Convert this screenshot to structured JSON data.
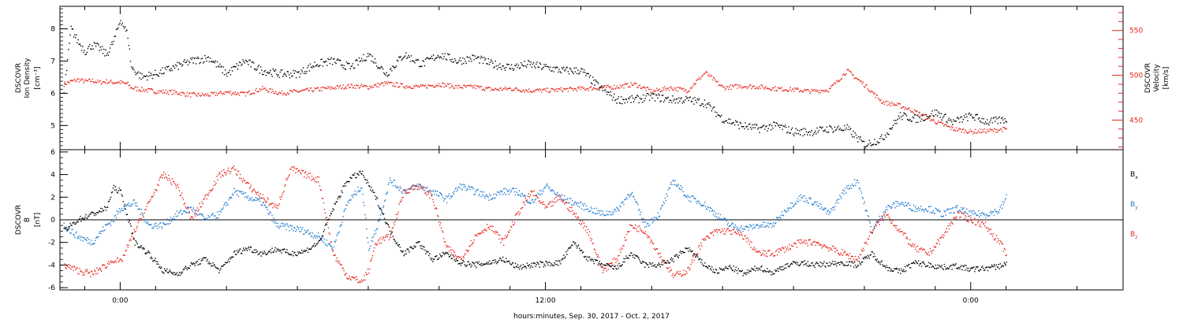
{
  "chart_data": [
    {
      "type": "line",
      "panel": "plasma",
      "ylabel_left": [
        "DSCOVR",
        "Ion Density",
        "[cm⁻³]"
      ],
      "ylabel_right": [
        "DSCOVR",
        "Velocity",
        "[km/s]"
      ],
      "ylim_left": [
        4.25,
        8.7
      ],
      "ylim_right": [
        417,
        577
      ],
      "yticks_left": [
        5,
        6,
        7,
        8
      ],
      "yticks_right": [
        450,
        500,
        550
      ],
      "series": [
        {
          "key": "density",
          "axis": "left",
          "color": "#000000",
          "x": [
            -1.6,
            -1.4,
            -1.2,
            -1.0,
            -0.8,
            -0.6,
            -0.4,
            -0.2,
            0.0,
            0.2,
            0.3,
            0.6,
            1.0,
            1.5,
            2.0,
            2.5,
            3.0,
            3.5,
            4.0,
            4.5,
            5.0,
            5.5,
            6.0,
            6.5,
            7.0,
            7.5,
            8.0,
            8.5,
            9.0,
            9.5,
            10.0,
            10.5,
            11.0,
            11.5,
            12.0,
            12.5,
            13.0,
            13.5,
            14.0,
            14.5,
            15.0,
            15.5,
            16.0,
            16.5,
            17.0,
            17.5,
            18.0,
            18.5,
            19.0,
            19.5,
            20.0,
            20.5,
            21.0,
            21.5,
            22.0,
            22.5,
            23.0,
            23.5,
            24.0,
            24.5,
            25.0
          ],
          "values": [
            6.0,
            8.0,
            7.6,
            7.3,
            7.5,
            7.4,
            7.2,
            7.6,
            8.3,
            7.8,
            6.8,
            6.5,
            6.6,
            6.8,
            7.0,
            7.1,
            6.6,
            7.0,
            6.7,
            6.6,
            6.6,
            6.9,
            7.0,
            6.8,
            7.2,
            6.6,
            7.2,
            6.9,
            7.2,
            7.0,
            7.1,
            6.9,
            6.8,
            6.9,
            6.8,
            6.7,
            6.7,
            6.2,
            5.8,
            5.8,
            5.9,
            5.8,
            5.8,
            5.7,
            5.2,
            5.0,
            4.9,
            5.0,
            4.8,
            4.8,
            4.9,
            4.9,
            4.4,
            4.6,
            5.3,
            5.2,
            5.4,
            5.1,
            5.3,
            5.1,
            5.2
          ]
        },
        {
          "key": "velocity",
          "axis": "right",
          "color": "#e8261c",
          "x": [
            -1.6,
            -1.4,
            -1.2,
            -1.0,
            -0.8,
            -0.6,
            -0.4,
            -0.2,
            0.0,
            0.2,
            0.3,
            0.6,
            1.0,
            1.5,
            2.0,
            2.5,
            3.0,
            3.5,
            4.0,
            4.5,
            5.0,
            5.5,
            6.0,
            6.5,
            7.0,
            7.5,
            8.0,
            8.5,
            9.0,
            9.5,
            10.0,
            10.5,
            11.0,
            11.5,
            12.0,
            12.5,
            13.0,
            13.5,
            14.0,
            14.5,
            15.0,
            15.5,
            16.0,
            16.5,
            17.0,
            17.5,
            18.0,
            18.5,
            19.0,
            19.5,
            20.0,
            20.5,
            21.0,
            21.5,
            22.0,
            22.5,
            23.0,
            23.5,
            24.0,
            24.5,
            25.0
          ],
          "values": [
            490,
            493,
            495,
            493,
            494,
            492,
            493,
            492,
            492,
            490,
            486,
            484,
            482,
            481,
            478,
            478,
            481,
            479,
            485,
            480,
            482,
            484,
            486,
            488,
            487,
            491,
            488,
            487,
            490,
            487,
            487,
            484,
            485,
            483,
            483,
            484,
            485,
            486,
            487,
            490,
            482,
            486,
            483,
            503,
            486,
            488,
            487,
            485,
            484,
            482,
            484,
            505,
            489,
            470,
            466,
            458,
            448,
            440,
            437,
            438,
            440
          ]
        }
      ]
    },
    {
      "type": "line",
      "panel": "magnetic-field",
      "ylabel_left": [
        "DSCOVR",
        "B",
        "[nT]"
      ],
      "ylim": [
        -6.2,
        6.2
      ],
      "yticks": [
        -6,
        -4,
        -2,
        0,
        2,
        4,
        6
      ],
      "zero_line": true,
      "legend_position": "right",
      "series": [
        {
          "key": "bx",
          "name": "B",
          "subscript": "x",
          "color": "#000000",
          "x": [
            -1.6,
            -1.2,
            -0.8,
            -0.4,
            -0.2,
            0.0,
            0.4,
            0.8,
            1.2,
            1.6,
            2.0,
            2.4,
            2.8,
            3.2,
            3.6,
            4.0,
            4.4,
            4.8,
            5.2,
            5.6,
            6.0,
            6.4,
            6.8,
            7.0,
            7.2,
            7.6,
            8.0,
            8.4,
            8.8,
            9.2,
            9.6,
            10.0,
            10.4,
            10.8,
            11.2,
            11.6,
            12.0,
            12.4,
            12.8,
            13.2,
            13.6,
            14.0,
            14.4,
            14.8,
            15.2,
            15.6,
            16.0,
            16.4,
            16.8,
            17.2,
            17.6,
            18.0,
            18.4,
            18.8,
            19.2,
            19.6,
            20.0,
            20.4,
            20.8,
            21.2,
            21.6,
            22.0,
            22.4,
            22.8,
            23.2,
            23.6,
            24.0,
            24.4,
            24.8,
            25.0
          ],
          "values": [
            -1.0,
            0.0,
            0.5,
            1.0,
            2.8,
            2.5,
            -2.0,
            -3.0,
            -4.5,
            -4.8,
            -4.0,
            -3.5,
            -4.5,
            -3.0,
            -2.5,
            -3.0,
            -2.6,
            -3.0,
            -2.8,
            -2.0,
            1.0,
            3.5,
            4.2,
            3.0,
            2.0,
            -1.0,
            -3.0,
            -2.0,
            -3.5,
            -3.0,
            -3.8,
            -4.0,
            -3.8,
            -3.5,
            -4.2,
            -4.0,
            -3.9,
            -3.8,
            -2.0,
            -3.5,
            -4.0,
            -4.3,
            -3.0,
            -4.0,
            -4.0,
            -3.5,
            -2.5,
            -3.8,
            -4.6,
            -4.2,
            -4.8,
            -4.2,
            -4.7,
            -4.0,
            -3.8,
            -4.0,
            -3.9,
            -3.8,
            -4.0,
            -3.0,
            -4.2,
            -4.6,
            -3.8,
            -4.0,
            -4.2,
            -4.1,
            -4.4,
            -4.3,
            -4.1,
            -3.9
          ]
        },
        {
          "key": "by",
          "name": "B",
          "subscript": "y",
          "color": "#1f7ad0",
          "x": [
            -1.6,
            -1.2,
            -0.8,
            -0.4,
            -0.2,
            0.0,
            0.4,
            0.8,
            1.2,
            1.6,
            2.0,
            2.4,
            2.8,
            3.2,
            3.6,
            4.0,
            4.4,
            4.8,
            5.2,
            5.6,
            6.0,
            6.4,
            6.8,
            7.0,
            7.2,
            7.6,
            8.0,
            8.4,
            8.8,
            9.2,
            9.6,
            10.0,
            10.4,
            10.8,
            11.2,
            11.6,
            12.0,
            12.4,
            12.8,
            13.2,
            13.6,
            14.0,
            14.4,
            14.8,
            15.2,
            15.6,
            16.0,
            16.4,
            16.8,
            17.2,
            17.6,
            18.0,
            18.4,
            18.8,
            19.2,
            19.6,
            20.0,
            20.4,
            20.8,
            21.2,
            21.6,
            22.0,
            22.4,
            22.8,
            23.2,
            23.6,
            24.0,
            24.4,
            24.8,
            25.0
          ],
          "values": [
            -0.5,
            -1.5,
            -2.0,
            -0.5,
            0.0,
            1.0,
            1.5,
            -0.5,
            -0.5,
            0.5,
            1.0,
            0.0,
            0.5,
            2.5,
            2.0,
            1.5,
            -0.5,
            -0.7,
            -1.0,
            -1.5,
            -2.5,
            1.5,
            3.0,
            -2.5,
            -1.0,
            3.5,
            2.5,
            3.0,
            2.5,
            1.8,
            3.0,
            2.5,
            2.0,
            2.5,
            2.5,
            1.5,
            3.0,
            2.0,
            1.5,
            1.0,
            0.5,
            0.8,
            2.5,
            -0.5,
            0.5,
            3.5,
            2.0,
            1.5,
            0.5,
            -0.5,
            -0.8,
            -0.5,
            -0.5,
            1.0,
            2.0,
            1.5,
            0.5,
            2.5,
            3.5,
            -1.0,
            1.0,
            1.5,
            1.0,
            1.0,
            0.5,
            1.0,
            0.5,
            0.5,
            0.8,
            2.0
          ]
        },
        {
          "key": "bz",
          "name": "B",
          "subscript": "z",
          "color": "#e8261c",
          "x": [
            -1.6,
            -1.2,
            -0.8,
            -0.4,
            -0.2,
            0.0,
            0.4,
            0.8,
            1.2,
            1.6,
            2.0,
            2.4,
            2.8,
            3.2,
            3.6,
            4.0,
            4.4,
            4.8,
            5.2,
            5.6,
            6.0,
            6.4,
            6.8,
            7.0,
            7.2,
            7.6,
            8.0,
            8.4,
            8.8,
            9.2,
            9.6,
            10.0,
            10.4,
            10.8,
            11.2,
            11.6,
            12.0,
            12.4,
            12.8,
            13.2,
            13.6,
            14.0,
            14.4,
            14.8,
            15.2,
            15.6,
            16.0,
            16.4,
            16.8,
            17.2,
            17.6,
            18.0,
            18.4,
            18.8,
            19.2,
            19.6,
            20.0,
            20.4,
            20.8,
            21.2,
            21.6,
            22.0,
            22.4,
            22.8,
            23.2,
            23.6,
            24.0,
            24.4,
            24.8,
            25.0
          ],
          "values": [
            -4.0,
            -4.5,
            -4.8,
            -4.0,
            -3.5,
            -3.8,
            -1.0,
            1.5,
            4.0,
            3.0,
            0.0,
            2.0,
            4.0,
            4.5,
            3.0,
            2.0,
            1.0,
            4.5,
            4.0,
            3.5,
            -3.0,
            -5.0,
            -5.5,
            -4.5,
            -2.0,
            -1.5,
            2.5,
            3.0,
            2.0,
            -2.5,
            -3.5,
            -1.5,
            -0.5,
            -2.0,
            0.5,
            2.5,
            1.0,
            2.0,
            0.5,
            -1.0,
            -4.5,
            -3.5,
            -0.5,
            -1.0,
            -3.0,
            -5.0,
            -4.5,
            -2.0,
            -1.0,
            -1.0,
            -1.5,
            -3.0,
            -3.0,
            -2.5,
            -2.0,
            -2.0,
            -2.5,
            -3.0,
            -3.5,
            -1.0,
            0.5,
            -1.0,
            -2.5,
            -3.0,
            -1.5,
            0.5,
            0.0,
            -0.5,
            -2.0,
            -3.0
          ]
        }
      ]
    }
  ],
  "x_axis": {
    "xlim": [
      -1.7,
      28.3
    ],
    "tick_labels": [
      {
        "hour": 0,
        "label": "0:00"
      },
      {
        "hour": 12,
        "label": "12:00"
      },
      {
        "hour": 24,
        "label": "0:00"
      }
    ],
    "xlabel": "hours:minutes, Sep. 30, 2017 - Oct.  2, 2017"
  },
  "colors": {
    "black": "#000000",
    "red": "#e8261c",
    "blue": "#1f7ad0"
  }
}
